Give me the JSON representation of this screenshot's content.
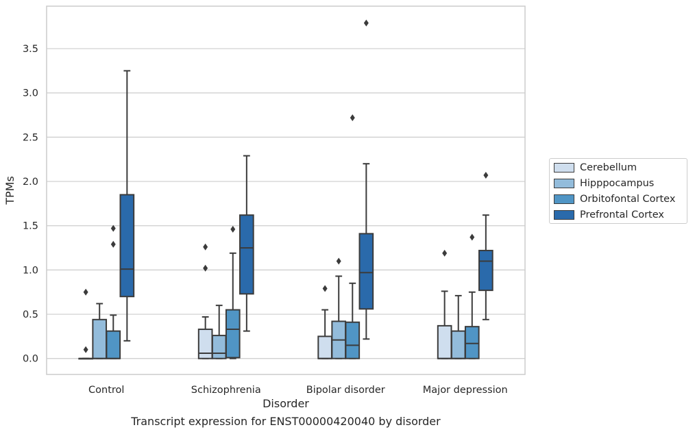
{
  "chart_data": {
    "type": "boxplot",
    "xlabel": "Disorder",
    "ylabel": "TPMs",
    "ylim": [
      -0.18,
      3.98
    ],
    "yticks": [
      "0.0",
      "0.5",
      "1.0",
      "1.5",
      "2.0",
      "2.5",
      "3.0",
      "3.5"
    ],
    "categories": [
      "Control",
      "Schizophrenia",
      "Bipolar disorder",
      "Major depression"
    ],
    "grid": "horizontal",
    "legend_position": "right",
    "series": [
      {
        "name": "Cerebellum",
        "color": "#cfdeee",
        "boxes": [
          {
            "whislo": 0.0,
            "q1": 0.0,
            "median": 0.0,
            "q3": 0.0,
            "whishi": 0.0,
            "fliers": [
              0.75,
              0.1
            ]
          },
          {
            "whislo": 0.0,
            "q1": 0.0,
            "median": 0.06,
            "q3": 0.33,
            "whishi": 0.47,
            "fliers": [
              1.26,
              1.02
            ]
          },
          {
            "whislo": 0.0,
            "q1": 0.0,
            "median": 0.0,
            "q3": 0.25,
            "whishi": 0.55,
            "fliers": [
              0.79
            ]
          },
          {
            "whislo": 0.0,
            "q1": 0.0,
            "median": 0.0,
            "q3": 0.37,
            "whishi": 0.76,
            "fliers": [
              1.19
            ]
          }
        ]
      },
      {
        "name": "Hipppocampus",
        "color": "#93bcdb",
        "boxes": [
          {
            "whislo": 0.0,
            "q1": 0.0,
            "median": 0.0,
            "q3": 0.44,
            "whishi": 0.62,
            "fliers": []
          },
          {
            "whislo": 0.0,
            "q1": 0.0,
            "median": 0.06,
            "q3": 0.26,
            "whishi": 0.6,
            "fliers": []
          },
          {
            "whislo": 0.0,
            "q1": 0.0,
            "median": 0.21,
            "q3": 0.42,
            "whishi": 0.93,
            "fliers": [
              1.1
            ]
          },
          {
            "whislo": 0.0,
            "q1": 0.0,
            "median": 0.0,
            "q3": 0.31,
            "whishi": 0.71,
            "fliers": []
          }
        ]
      },
      {
        "name": "Orbitofontal Cortex",
        "color": "#5095c5",
        "boxes": [
          {
            "whislo": 0.0,
            "q1": 0.0,
            "median": 0.0,
            "q3": 0.31,
            "whishi": 0.49,
            "fliers": [
              1.47,
              1.29
            ]
          },
          {
            "whislo": 0.0,
            "q1": 0.01,
            "median": 0.33,
            "q3": 0.55,
            "whishi": 1.19,
            "fliers": [
              1.46
            ]
          },
          {
            "whislo": 0.0,
            "q1": 0.0,
            "median": 0.15,
            "q3": 0.41,
            "whishi": 0.85,
            "fliers": [
              2.72
            ]
          },
          {
            "whislo": 0.0,
            "q1": 0.0,
            "median": 0.17,
            "q3": 0.36,
            "whishi": 0.75,
            "fliers": [
              1.37
            ]
          }
        ]
      },
      {
        "name": "Prefrontal Cortex",
        "color": "#2a6aab",
        "boxes": [
          {
            "whislo": 0.2,
            "q1": 0.7,
            "median": 1.01,
            "q3": 1.85,
            "whishi": 3.25,
            "fliers": []
          },
          {
            "whislo": 0.31,
            "q1": 0.73,
            "median": 1.25,
            "q3": 1.62,
            "whishi": 2.29,
            "fliers": []
          },
          {
            "whislo": 0.22,
            "q1": 0.56,
            "median": 0.97,
            "q3": 1.41,
            "whishi": 2.2,
            "fliers": [
              3.79
            ]
          },
          {
            "whislo": 0.44,
            "q1": 0.77,
            "median": 1.1,
            "q3": 1.22,
            "whishi": 1.62,
            "fliers": [
              2.07
            ]
          }
        ]
      }
    ],
    "caption": "Transcript expression for ENST00000420040 by disorder"
  }
}
